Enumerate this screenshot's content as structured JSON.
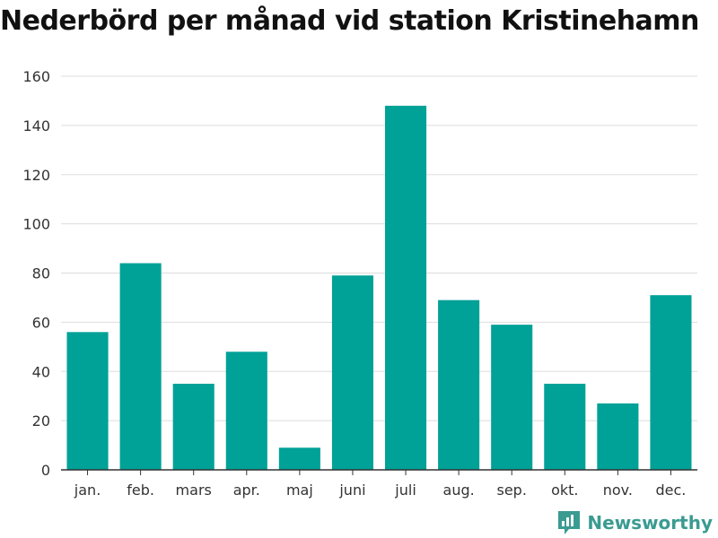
{
  "chart_data": {
    "type": "bar",
    "title": "Nederbörd per månad vid station Kristinehamn",
    "categories": [
      "jan.",
      "feb.",
      "mars",
      "apr.",
      "maj",
      "juni",
      "juli",
      "aug.",
      "sep.",
      "okt.",
      "nov.",
      "dec."
    ],
    "values": [
      56,
      84,
      35,
      48,
      9,
      79,
      148,
      69,
      59,
      35,
      27,
      71
    ],
    "ylim": [
      0,
      160
    ],
    "yticks": [
      0,
      20,
      40,
      60,
      80,
      100,
      120,
      140,
      160
    ],
    "grid": true,
    "bar_color": "#00a197"
  },
  "brand": {
    "name": "Newsworthy",
    "icon": "newsworthy-logo-icon",
    "color": "#3a9b91"
  }
}
